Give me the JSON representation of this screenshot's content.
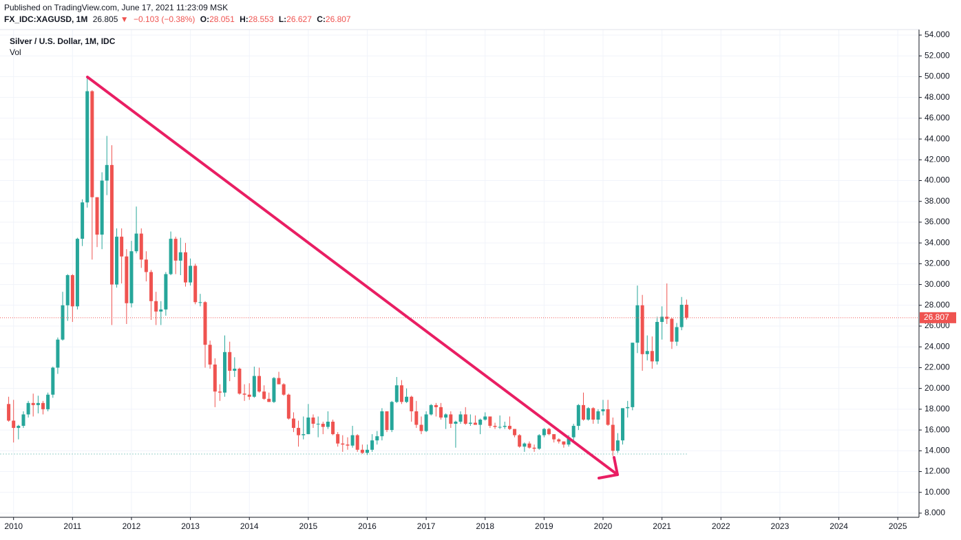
{
  "header": {
    "published": "Published on TradingView.com, June 17, 2021 11:23:09 MSK",
    "symbol": "FX_IDC:XAGUSD, 1M",
    "price": "26.805",
    "direction": "▼",
    "change": "−0.103 (−0.38%)",
    "ohlc": [
      {
        "label": "O:",
        "value": "28.051"
      },
      {
        "label": "H:",
        "value": "28.553"
      },
      {
        "label": "L:",
        "value": "26.627"
      },
      {
        "label": "C:",
        "value": "26.807"
      }
    ]
  },
  "chart_data": {
    "type": "candlestick",
    "legend": [
      "Silver / U.S. Dollar, 1M, IDC",
      "Vol"
    ],
    "up_color": "#26a69a",
    "down_color": "#ef5350",
    "grid": true,
    "last_price": 26.807,
    "xlim": [
      2009.77,
      2025.36
    ],
    "xticks": [
      2010,
      2011,
      2012,
      2013,
      2014,
      2015,
      2016,
      2017,
      2018,
      2019,
      2020,
      2021,
      2022,
      2023,
      2024,
      2025
    ],
    "ylim": [
      7.6,
      54.53
    ],
    "yticks": [
      {
        "value": 8,
        "label": "8.000"
      },
      {
        "value": 10,
        "label": "10.000"
      },
      {
        "value": 12,
        "label": "12.000"
      },
      {
        "value": 14,
        "label": "14.000"
      },
      {
        "value": 16,
        "label": "16.000"
      },
      {
        "value": 18,
        "label": "18.000"
      },
      {
        "value": 20,
        "label": "20.000"
      },
      {
        "value": 22,
        "label": "22.000"
      },
      {
        "value": 24,
        "label": "24.000"
      },
      {
        "value": 26,
        "label": "26.000"
      },
      {
        "value": 28,
        "label": "28.000"
      },
      {
        "value": 30,
        "label": "30.000"
      },
      {
        "value": 32,
        "label": "32.000"
      },
      {
        "value": 34,
        "label": "34.000"
      },
      {
        "value": 36,
        "label": "36.000"
      },
      {
        "value": 38,
        "label": "38.000"
      },
      {
        "value": 40,
        "label": "40.000"
      },
      {
        "value": 42,
        "label": "42.000"
      },
      {
        "value": 44,
        "label": "44.000"
      },
      {
        "value": 46,
        "label": "46.000"
      },
      {
        "value": 48,
        "label": "48.000"
      },
      {
        "value": 50,
        "label": "50.000"
      },
      {
        "value": 52,
        "label": "52.000"
      },
      {
        "value": 54,
        "label": "54.000"
      }
    ],
    "x": [
      2009.917,
      2010.0,
      2010.083,
      2010.167,
      2010.25,
      2010.333,
      2010.417,
      2010.5,
      2010.583,
      2010.667,
      2010.75,
      2010.833,
      2010.917,
      2011.0,
      2011.083,
      2011.167,
      2011.25,
      2011.333,
      2011.417,
      2011.5,
      2011.583,
      2011.667,
      2011.75,
      2011.833,
      2011.917,
      2012.0,
      2012.083,
      2012.167,
      2012.25,
      2012.333,
      2012.417,
      2012.5,
      2012.583,
      2012.667,
      2012.75,
      2012.833,
      2012.917,
      2013.0,
      2013.083,
      2013.167,
      2013.25,
      2013.333,
      2013.417,
      2013.5,
      2013.583,
      2013.667,
      2013.75,
      2013.833,
      2013.917,
      2014.0,
      2014.083,
      2014.167,
      2014.25,
      2014.333,
      2014.417,
      2014.5,
      2014.583,
      2014.667,
      2014.75,
      2014.833,
      2014.917,
      2015.0,
      2015.083,
      2015.167,
      2015.25,
      2015.333,
      2015.417,
      2015.5,
      2015.583,
      2015.667,
      2015.75,
      2015.833,
      2015.917,
      2016.0,
      2016.083,
      2016.167,
      2016.25,
      2016.333,
      2016.417,
      2016.5,
      2016.583,
      2016.667,
      2016.75,
      2016.833,
      2016.917,
      2017.0,
      2017.083,
      2017.167,
      2017.25,
      2017.333,
      2017.417,
      2017.5,
      2017.583,
      2017.667,
      2017.75,
      2017.833,
      2017.917,
      2018.0,
      2018.083,
      2018.167,
      2018.25,
      2018.333,
      2018.417,
      2018.5,
      2018.583,
      2018.667,
      2018.75,
      2018.833,
      2018.917,
      2019.0,
      2019.083,
      2019.167,
      2019.25,
      2019.333,
      2019.417,
      2019.5,
      2019.583,
      2019.667,
      2019.75,
      2019.833,
      2019.917,
      2020.0,
      2020.083,
      2020.167,
      2020.25,
      2020.333,
      2020.417,
      2020.5,
      2020.583,
      2020.667,
      2020.75,
      2020.833,
      2020.917,
      2021.0,
      2021.083,
      2021.167,
      2021.25,
      2021.333,
      2021.417
    ],
    "open": [
      18.5,
      16.9,
      16.2,
      16.4,
      17.5,
      18.6,
      18.4,
      18.6,
      18.0,
      19.4,
      22.0,
      24.7,
      28.0,
      30.9,
      27.9,
      34.4,
      37.9,
      48.6,
      38.4,
      34.8,
      40.0,
      41.5,
      30.0,
      34.6,
      32.7,
      28.2,
      33.2,
      34.9,
      32.4,
      31.2,
      28.4,
      27.4,
      27.6,
      31.0,
      34.4,
      32.3,
      33.1,
      30.2,
      31.8,
      28.3,
      28.3,
      24.2,
      22.3,
      19.7,
      19.6,
      23.5,
      21.7,
      21.9,
      19.5,
      19.4,
      19.2,
      21.2,
      19.7,
      19.0,
      18.7,
      21.0,
      20.4,
      19.4,
      17.1,
      16.2,
      15.5,
      15.6,
      17.2,
      16.6,
      16.6,
      16.3,
      16.8,
      15.6,
      14.7,
      14.6,
      14.5,
      15.5,
      14.1,
      13.8,
      14.1,
      15.0,
      15.4,
      17.8,
      16.0,
      18.7,
      20.3,
      18.7,
      19.2,
      17.8,
      16.5,
      15.9,
      17.5,
      18.4,
      18.2,
      17.2,
      17.5,
      16.6,
      16.8,
      17.5,
      16.6,
      16.7,
      16.5,
      17.0,
      17.3,
      16.4,
      16.3,
      16.3,
      16.4,
      16.1,
      15.5,
      14.4,
      14.7,
      14.3,
      14.2,
      15.5,
      16.1,
      15.6,
      15.1,
      14.9,
      14.6,
      15.3,
      16.4,
      18.4,
      17.0,
      18.1,
      17.0,
      17.8,
      18.0,
      16.5,
      14.0,
      15.0,
      18.1,
      18.2,
      24.4,
      28.0,
      23.3,
      23.6,
      22.6,
      26.4,
      26.9,
      26.7,
      24.5,
      25.9,
      28.051
    ],
    "high": [
      19.2,
      18.9,
      16.5,
      17.8,
      18.8,
      19.5,
      19.3,
      18.8,
      19.6,
      22.1,
      24.9,
      29.3,
      31.0,
      31.0,
      34.5,
      38.2,
      49.9,
      48.7,
      38.4,
      40.8,
      44.3,
      43.4,
      35.4,
      35.4,
      33.4,
      34.2,
      37.5,
      35.4,
      33.2,
      31.4,
      29.3,
      28.4,
      31.2,
      35.1,
      34.6,
      34.5,
      34.0,
      32.5,
      32.0,
      29.1,
      28.4,
      24.6,
      22.9,
      20.4,
      25.1,
      24.5,
      23.0,
      22.0,
      20.4,
      20.5,
      22.1,
      22.0,
      20.3,
      19.6,
      21.1,
      21.6,
      20.5,
      19.5,
      17.7,
      16.9,
      17.3,
      18.5,
      17.5,
      17.3,
      16.8,
      17.8,
      17.0,
      15.8,
      15.5,
      15.3,
      16.4,
      15.6,
      14.6,
      14.6,
      15.6,
      15.9,
      18.1,
      17.8,
      18.8,
      21.1,
      20.8,
      20.0,
      19.3,
      18.8,
      17.3,
      17.8,
      18.5,
      18.6,
      18.6,
      17.6,
      17.8,
      16.9,
      17.8,
      18.2,
      17.5,
      17.4,
      17.1,
      17.7,
      17.3,
      16.7,
      17.4,
      16.8,
      17.3,
      16.1,
      15.6,
      14.8,
      14.9,
      14.6,
      15.6,
      16.2,
      16.2,
      15.6,
      15.2,
      14.9,
      15.5,
      16.6,
      18.5,
      19.6,
      18.2,
      18.2,
      18.0,
      18.9,
      18.9,
      17.2,
      15.7,
      18.1,
      18.8,
      24.4,
      29.9,
      29.0,
      25.1,
      25.0,
      26.9,
      27.9,
      30.1,
      26.8,
      26.3,
      28.8,
      28.553
    ],
    "low": [
      16.8,
      14.8,
      15.1,
      16.2,
      17.2,
      17.3,
      17.6,
      17.5,
      17.8,
      19.1,
      21.4,
      24.6,
      26.5,
      26.4,
      27.6,
      33.7,
      37.4,
      32.4,
      33.6,
      33.4,
      38.6,
      26.1,
      29.7,
      30.1,
      26.2,
      27.8,
      33.0,
      31.6,
      30.3,
      26.6,
      26.1,
      26.1,
      27.0,
      30.9,
      31.0,
      30.9,
      29.8,
      29.9,
      28.1,
      27.9,
      22.0,
      21.9,
      18.2,
      18.8,
      19.2,
      20.7,
      21.1,
      19.4,
      18.8,
      18.9,
      19.1,
      19.6,
      18.9,
      18.7,
      18.6,
      20.4,
      19.3,
      17.0,
      15.8,
      14.4,
      15.1,
      15.6,
      16.2,
      15.3,
      15.6,
      16.1,
      15.5,
      14.4,
      13.9,
      14.1,
      14.3,
      13.9,
      13.7,
      13.6,
      13.9,
      14.6,
      15.0,
      15.8,
      15.8,
      18.6,
      18.5,
      18.6,
      16.8,
      16.2,
      15.6,
      15.8,
      17.4,
      17.3,
      17.0,
      16.1,
      16.2,
      14.3,
      16.6,
      16.5,
      16.4,
      16.5,
      15.6,
      16.9,
      16.2,
      16.1,
      16.1,
      16.1,
      16.0,
      15.3,
      14.3,
      13.9,
      14.2,
      13.9,
      14.1,
      15.3,
      15.5,
      14.8,
      14.7,
      14.3,
      14.4,
      15.0,
      16.0,
      16.9,
      16.9,
      16.6,
      16.6,
      17.4,
      16.4,
      13.5,
      13.8,
      14.6,
      17.2,
      17.9,
      23.4,
      21.7,
      22.7,
      21.9,
      22.3,
      24.7,
      26.2,
      23.8,
      24.1,
      25.6,
      26.627
    ],
    "close": [
      16.9,
      16.2,
      16.4,
      17.5,
      18.6,
      18.4,
      18.6,
      18.0,
      19.4,
      22.0,
      24.7,
      28.0,
      30.9,
      27.9,
      34.4,
      37.9,
      48.6,
      38.4,
      34.8,
      40.0,
      41.5,
      30.0,
      34.6,
      32.7,
      28.2,
      33.2,
      34.9,
      32.4,
      31.2,
      28.4,
      27.4,
      27.6,
      31.0,
      34.4,
      32.3,
      33.1,
      30.2,
      31.8,
      28.3,
      28.3,
      24.2,
      22.3,
      19.7,
      19.6,
      23.5,
      21.7,
      21.9,
      19.5,
      19.4,
      19.2,
      21.2,
      19.7,
      19.0,
      18.7,
      21.0,
      20.4,
      19.4,
      17.1,
      16.2,
      15.5,
      15.6,
      17.2,
      16.6,
      16.6,
      16.3,
      16.8,
      15.6,
      14.7,
      14.6,
      14.5,
      15.5,
      14.1,
      13.8,
      14.1,
      15.0,
      15.4,
      17.8,
      16.0,
      18.7,
      20.3,
      18.7,
      19.2,
      17.8,
      16.5,
      15.9,
      17.5,
      18.4,
      18.2,
      17.2,
      17.5,
      16.6,
      16.8,
      17.5,
      16.6,
      16.7,
      16.5,
      17.0,
      17.3,
      16.4,
      16.3,
      16.3,
      16.4,
      16.1,
      15.5,
      14.4,
      14.7,
      14.3,
      14.2,
      15.5,
      16.1,
      15.6,
      15.1,
      14.9,
      14.6,
      15.3,
      16.4,
      18.4,
      17.0,
      18.1,
      17.0,
      17.8,
      18.0,
      16.5,
      14.0,
      15.0,
      18.1,
      18.2,
      24.4,
      28.0,
      23.3,
      23.6,
      22.6,
      26.4,
      26.9,
      26.7,
      24.5,
      25.9,
      28.051,
      26.807
    ]
  }
}
